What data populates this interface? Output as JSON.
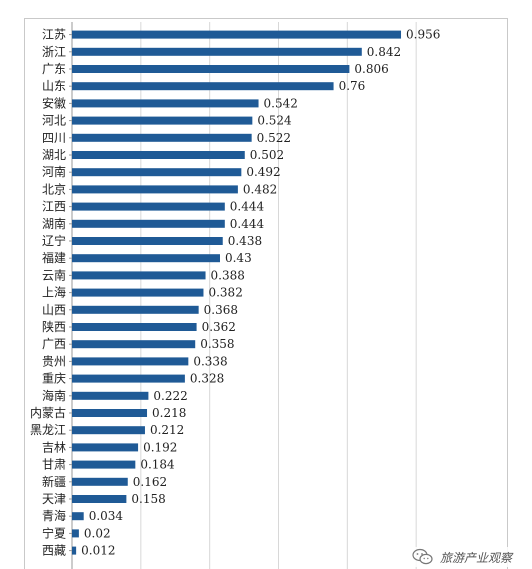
{
  "chart_data": {
    "type": "bar",
    "orientation": "horizontal",
    "categories": [
      "江苏",
      "浙江",
      "广东",
      "山东",
      "安徽",
      "河北",
      "四川",
      "湖北",
      "河南",
      "北京",
      "江西",
      "湖南",
      "辽宁",
      "福建",
      "云南",
      "上海",
      "山西",
      "陕西",
      "广西",
      "贵州",
      "重庆",
      "海南",
      "内蒙古",
      "黑龙江",
      "吉林",
      "甘肃",
      "新疆",
      "天津",
      "青海",
      "宁夏",
      "西藏"
    ],
    "values": [
      0.956,
      0.842,
      0.806,
      0.76,
      0.542,
      0.524,
      0.522,
      0.502,
      0.492,
      0.482,
      0.444,
      0.444,
      0.438,
      0.43,
      0.388,
      0.382,
      0.368,
      0.362,
      0.358,
      0.338,
      0.328,
      0.222,
      0.218,
      0.212,
      0.192,
      0.184,
      0.162,
      0.158,
      0.034,
      0.02,
      0.012
    ],
    "value_labels": [
      "0.956",
      "0.842",
      "0.806",
      "0.76",
      "0.542",
      "0.524",
      "0.522",
      "0.502",
      "0.492",
      "0.482",
      "0.444",
      "0.444",
      "0.438",
      "0.43",
      "0.388",
      "0.382",
      "0.368",
      "0.362",
      "0.358",
      "0.338",
      "0.328",
      "0.222",
      "0.218",
      "0.212",
      "0.192",
      "0.184",
      "0.162",
      "0.158",
      "0.034",
      "0.02",
      "0.012"
    ],
    "title": "",
    "xlabel": "",
    "ylabel": "",
    "xlim": [
      0,
      1.2
    ],
    "grid": true,
    "bar_color": "#1f5a96",
    "grid_color": "#d8d8d8"
  },
  "watermark": {
    "text": "旅游产业观察",
    "icon": "wechat-icon"
  }
}
